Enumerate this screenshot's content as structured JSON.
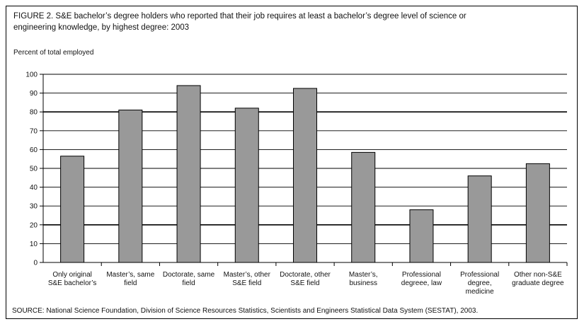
{
  "figure": {
    "title_line1": "FIGURE 2.  S&E bachelor’s degree holders who reported that their job requires at least a bachelor’s degree level of science or",
    "title_line2": "engineering knowledge, by highest degree: 2003",
    "source": "SOURCE:  National Science Foundation, Division of Science Resources Statistics, Scientists and Engineers Statistical Data System (SESTAT), 2003."
  },
  "chart_data": {
    "type": "bar",
    "title": "FIGURE 2.  S&E bachelor’s degree holders who reported that their job requires at least a bachelor’s degree level of science or engineering knowledge, by highest degree: 2003",
    "ylabel": "Percent of total employed",
    "xlabel": "",
    "ylim": [
      0,
      100
    ],
    "yticks": [
      0,
      10,
      20,
      30,
      40,
      50,
      60,
      70,
      80,
      90,
      100
    ],
    "grid": true,
    "categories": [
      [
        "Only original",
        "S&E bachelor’s"
      ],
      [
        "Master’s, same",
        "field"
      ],
      [
        "Doctorate, same",
        "field"
      ],
      [
        "Master’s, other",
        "S&E field"
      ],
      [
        "Doctorate, other",
        "S&E field"
      ],
      [
        "Master’s,",
        "business"
      ],
      [
        "Professional",
        "degreee, law"
      ],
      [
        "Professional",
        "degree,",
        "medicine"
      ],
      [
        "Other non-S&E",
        "graduate degree"
      ]
    ],
    "values": [
      56.5,
      81,
      94,
      82,
      92.5,
      58.5,
      28,
      46,
      52.5
    ],
    "bar_color": "#999999"
  }
}
